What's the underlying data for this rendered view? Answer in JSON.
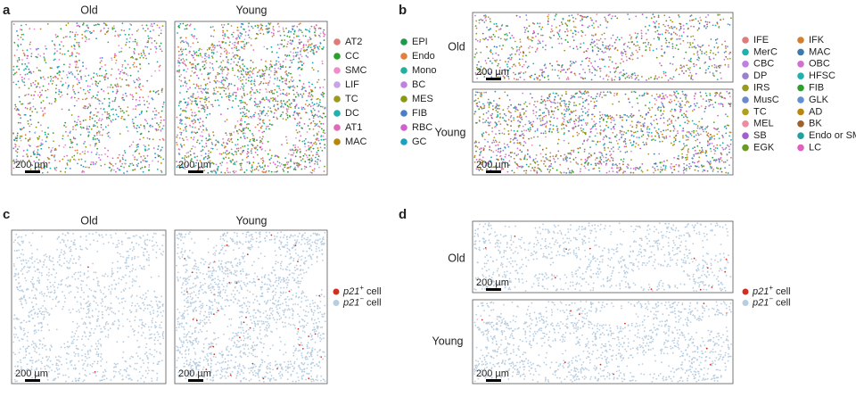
{
  "panels": [
    {
      "label": "a",
      "titles": [
        "Old",
        "Young"
      ],
      "scale_bar": "200 µm",
      "legend": [
        {
          "label": "AT2",
          "color": "#e07b7b"
        },
        {
          "label": "CC",
          "color": "#2ca02c"
        },
        {
          "label": "SMC",
          "color": "#f08cc8"
        },
        {
          "label": "LIF",
          "color": "#c9a3e6"
        },
        {
          "label": "TC",
          "color": "#9a9a20"
        },
        {
          "label": "DC",
          "color": "#1fb0b0"
        },
        {
          "label": "AT1",
          "color": "#e06ab8"
        },
        {
          "label": "MAC",
          "color": "#b8860b"
        },
        {
          "label": "EPI",
          "color": "#1f9a4a"
        },
        {
          "label": "Endo",
          "color": "#e0803a"
        },
        {
          "label": "Mono",
          "color": "#20b0a0"
        },
        {
          "label": "BC",
          "color": "#c080e0"
        },
        {
          "label": "MES",
          "color": "#8a9a10"
        },
        {
          "label": "FIB",
          "color": "#4a7fc8"
        },
        {
          "label": "RBC",
          "color": "#d060d0"
        },
        {
          "label": "GC",
          "color": "#1aa0c0"
        }
      ]
    },
    {
      "label": "b",
      "row_labels": [
        "Old",
        "Young"
      ],
      "scale_bar": "200 µm",
      "legend": [
        {
          "label": "IFE",
          "color": "#e07b7b"
        },
        {
          "label": "MerC",
          "color": "#1fb0b0"
        },
        {
          "label": "CBC",
          "color": "#c080e0"
        },
        {
          "label": "DP",
          "color": "#9a80d0"
        },
        {
          "label": "IRS",
          "color": "#9a9a20"
        },
        {
          "label": "MusC",
          "color": "#6a8ac8"
        },
        {
          "label": "TC",
          "color": "#b0a020"
        },
        {
          "label": "MEL",
          "color": "#f08ca0"
        },
        {
          "label": "SB",
          "color": "#a060d0"
        },
        {
          "label": "EGK",
          "color": "#6a9a20"
        },
        {
          "label": "IFK",
          "color": "#d08030"
        },
        {
          "label": "MAC",
          "color": "#3a7ab0"
        },
        {
          "label": "OBC",
          "color": "#d070d0"
        },
        {
          "label": "HFSC",
          "color": "#1fb0b0"
        },
        {
          "label": "FIB",
          "color": "#2ca02c"
        },
        {
          "label": "GLK",
          "color": "#6090d0"
        },
        {
          "label": "AD",
          "color": "#b8860b"
        },
        {
          "label": "BK",
          "color": "#a0602a"
        },
        {
          "label": "Endo or SMC",
          "color": "#20a0a0"
        },
        {
          "label": "LC",
          "color": "#e060c0"
        }
      ]
    },
    {
      "label": "c",
      "titles": [
        "Old",
        "Young"
      ],
      "scale_bar": "200 µm",
      "legend": [
        {
          "gene": "p21",
          "sign": "+",
          "word": "cell",
          "color": "#d03020"
        },
        {
          "gene": "p21",
          "sign": "−",
          "word": "cell",
          "color": "#b8cde0"
        }
      ]
    },
    {
      "label": "d",
      "row_labels": [
        "Old",
        "Young"
      ],
      "scale_bar": "200 µm",
      "legend": [
        {
          "gene": "p21",
          "sign": "+",
          "word": "cell",
          "color": "#d03020"
        },
        {
          "gene": "p21",
          "sign": "−",
          "word": "cell",
          "color": "#b8cde0"
        }
      ]
    }
  ]
}
